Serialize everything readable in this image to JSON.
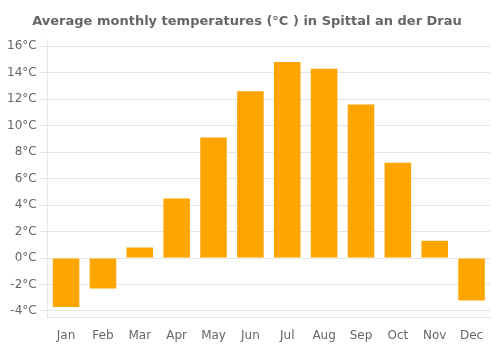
{
  "chart_data": {
    "type": "bar",
    "title": "Average monthly temperatures (°C ) in Spittal an der Drau",
    "categories": [
      "Jan",
      "Feb",
      "Mar",
      "Apr",
      "May",
      "Jun",
      "Jul",
      "Aug",
      "Sep",
      "Oct",
      "Nov",
      "Dec"
    ],
    "values": [
      -3.7,
      -2.3,
      0.8,
      4.5,
      9.1,
      12.6,
      14.8,
      14.3,
      11.6,
      7.2,
      1.3,
      -3.2
    ],
    "color": "#FFA500",
    "ylim": [
      -4.5,
      16.5
    ],
    "yticks": [
      {
        "value": -4,
        "label": "-4°C"
      },
      {
        "value": -2,
        "label": "-2°C"
      },
      {
        "value": 0,
        "label": "0°C"
      },
      {
        "value": 2,
        "label": "2°C"
      },
      {
        "value": 4,
        "label": "4°C"
      },
      {
        "value": 6,
        "label": "6°C"
      },
      {
        "value": 8,
        "label": "8°C"
      },
      {
        "value": 10,
        "label": "10°C"
      },
      {
        "value": 12,
        "label": "12°C"
      },
      {
        "value": 14,
        "label": "14°C"
      },
      {
        "value": 16,
        "label": "16°C"
      }
    ],
    "grid": true
  }
}
